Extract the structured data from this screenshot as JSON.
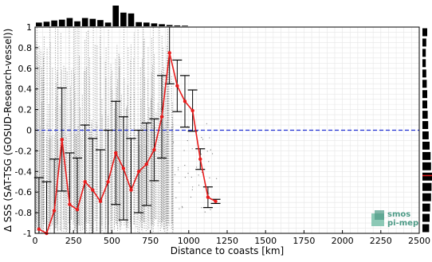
{
  "chart_data": {
    "type": "line",
    "xlabel": "Distance to coasts [km]",
    "ylabel": "Δ SSS (SAT-TSG (GOSUD-Research-vessel))",
    "xlim": [
      0,
      2500
    ],
    "ylim": [
      -1,
      1
    ],
    "x_ticks": [
      "0",
      "250",
      "500",
      "750",
      "1000",
      "1250",
      "1500",
      "1750",
      "2000",
      "2250",
      "2500"
    ],
    "y_ticks": [
      "-1",
      "-0.8",
      "-0.6",
      "-0.4",
      "-0.2",
      "0",
      "0.2",
      "0.4",
      "0.6",
      "0.8",
      "1"
    ],
    "grid": true,
    "reference_line": {
      "y": 0,
      "style": "dashed",
      "color": "#1f2fd1"
    },
    "series": [
      {
        "type": "line-with-errorbars",
        "color": "#e81b1b",
        "x": [
          25,
          75,
          125,
          175,
          225,
          275,
          325,
          375,
          425,
          475,
          525,
          575,
          625,
          675,
          725,
          775,
          825,
          875,
          925,
          975,
          1025,
          1075,
          1125,
          1175
        ],
        "y": [
          -0.96,
          -1.0,
          -0.78,
          -0.09,
          -0.72,
          -0.77,
          -0.5,
          -0.58,
          -0.69,
          -0.5,
          -0.22,
          -0.37,
          -0.58,
          -0.4,
          -0.33,
          -0.19,
          0.13,
          0.75,
          0.43,
          0.28,
          0.19,
          -0.28,
          -0.65,
          -0.69
        ],
        "error": [
          0.5,
          0.5,
          0.5,
          0.5,
          0.5,
          0.5,
          0.55,
          0.5,
          0.5,
          0.5,
          0.5,
          0.5,
          0.5,
          0.4,
          0.4,
          0.3,
          0.4,
          0.3,
          0.25,
          0.25,
          0.2,
          0.1,
          0.1,
          0.02
        ]
      }
    ],
    "scatter_color": "#7a7a7a",
    "scatter_extent_x": [
      0,
      900
    ],
    "top_histogram": [
      0.18,
      0.22,
      0.28,
      0.32,
      0.4,
      0.24,
      0.4,
      0.36,
      0.3,
      0.18,
      1.0,
      0.66,
      0.62,
      0.2,
      0.18,
      0.14,
      0.1,
      0.06,
      0.04,
      0.03
    ],
    "right_histogram": [
      0.5,
      0.4,
      0.35,
      0.35,
      0.4,
      0.45,
      0.5,
      0.5,
      0.55,
      0.6,
      0.65,
      0.75,
      0.85,
      0.9,
      1.0,
      0.95,
      0.9,
      0.8,
      0.75,
      0.7
    ],
    "right_histogram_marker_y": -0.44,
    "logo": {
      "line1": "smos",
      "line2": "pi-mep"
    }
  }
}
